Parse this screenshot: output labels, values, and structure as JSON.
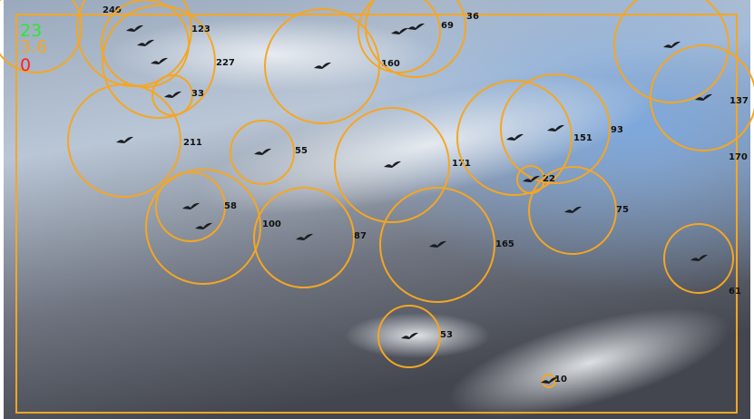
{
  "overlay": {
    "counters": [
      "23",
      "3.6",
      "0"
    ]
  },
  "detections": [
    {
      "label": "240"
    },
    {
      "label": "123"
    },
    {
      "label": "227"
    },
    {
      "label": "33"
    },
    {
      "label": "211"
    },
    {
      "label": "55"
    },
    {
      "label": "58"
    },
    {
      "label": "100"
    },
    {
      "label": "87"
    },
    {
      "label": "171"
    },
    {
      "label": "165"
    },
    {
      "label": "160"
    },
    {
      "label": "69"
    },
    {
      "label": "36"
    },
    {
      "label": "151"
    },
    {
      "label": "93"
    },
    {
      "label": "22"
    },
    {
      "label": "75"
    },
    {
      "label": "137"
    },
    {
      "label": "170"
    },
    {
      "label": "61"
    },
    {
      "label": "53"
    },
    {
      "label": "10"
    }
  ]
}
